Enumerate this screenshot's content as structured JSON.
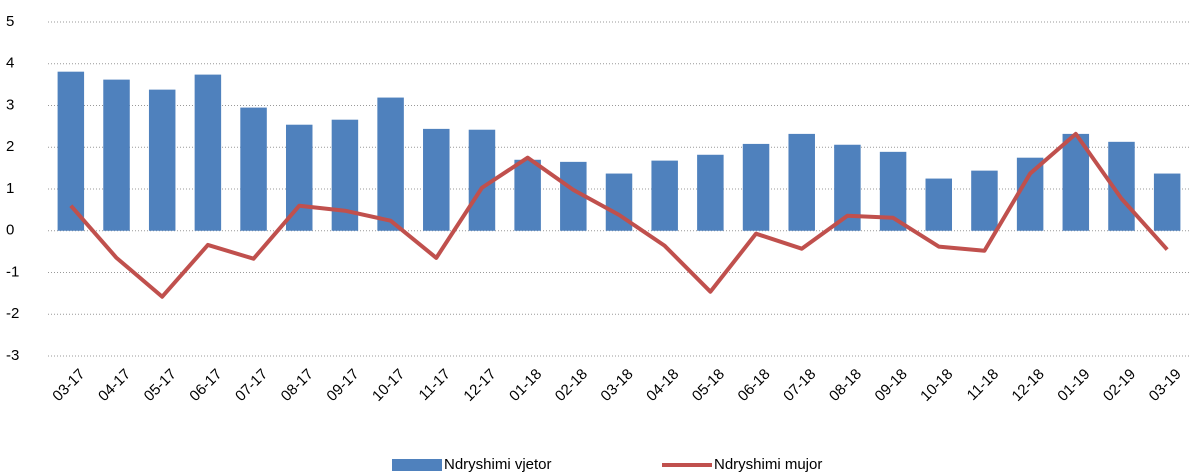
{
  "chart_data": {
    "type": "bar_line",
    "categories": [
      "03-17",
      "04-17",
      "05-17",
      "06-17",
      "07-17",
      "08-17",
      "09-17",
      "10-17",
      "11-17",
      "12-17",
      "01-18",
      "02-18",
      "03-18",
      "04-18",
      "05-18",
      "06-18",
      "07-18",
      "08-18",
      "09-18",
      "10-18",
      "11-18",
      "12-18",
      "01-19",
      "02-19",
      "03-19"
    ],
    "series": [
      {
        "name": "Ndryshimi vjetor",
        "type": "bar",
        "color": "#4f81bd",
        "values": [
          3.81,
          3.62,
          3.38,
          3.74,
          2.95,
          2.54,
          2.66,
          3.19,
          2.44,
          2.42,
          1.7,
          1.65,
          1.37,
          1.68,
          1.82,
          2.08,
          2.32,
          2.06,
          1.89,
          1.25,
          1.44,
          1.75,
          2.32,
          2.13,
          1.37
        ]
      },
      {
        "name": "Ndryshimi mujor",
        "type": "line",
        "color": "#c0504d",
        "values": [
          0.6,
          -0.65,
          -1.58,
          -0.34,
          -0.67,
          0.6,
          0.48,
          0.24,
          -0.65,
          1.03,
          1.75,
          0.98,
          0.38,
          -0.36,
          -1.46,
          -0.07,
          -0.43,
          0.36,
          0.31,
          -0.38,
          -0.48,
          1.37,
          2.32,
          0.77,
          -0.45
        ]
      }
    ],
    "ylim": [
      -3,
      5
    ],
    "yticks": [
      -3,
      -2,
      -1,
      0,
      1,
      2,
      3,
      4,
      5
    ],
    "grid": true,
    "legend": "bottom"
  }
}
